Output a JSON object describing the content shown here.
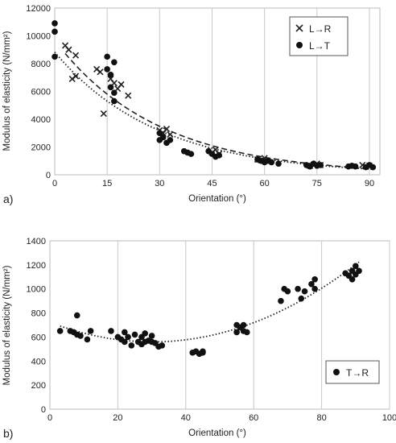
{
  "chart_data": [
    {
      "type": "scatter",
      "panel_label": "a)",
      "xlabel": "Orientation (°)",
      "ylabel": "Modulus of elasticity (N/mm²)",
      "xlim": [
        0,
        93
      ],
      "ylim": [
        0,
        12000
      ],
      "xticks": [
        0,
        15,
        30,
        45,
        60,
        75,
        90
      ],
      "yticks": [
        0,
        2000,
        4000,
        6000,
        8000,
        10000,
        12000
      ],
      "grid": "vertical",
      "legend_position": "top-right",
      "series": [
        {
          "name": "L→R",
          "marker": "x",
          "trendline": "dashed",
          "points": [
            [
              3,
              9300
            ],
            [
              4,
              9000
            ],
            [
              5,
              6900
            ],
            [
              6,
              8600
            ],
            [
              6,
              7100
            ],
            [
              12,
              7600
            ],
            [
              13,
              7400
            ],
            [
              14,
              4400
            ],
            [
              16,
              6900
            ],
            [
              17,
              6600
            ],
            [
              18,
              6200
            ],
            [
              19,
              6500
            ],
            [
              21,
              5700
            ],
            [
              30,
              3200
            ],
            [
              31,
              3000
            ],
            [
              32,
              3300
            ],
            [
              33,
              2900
            ],
            [
              45,
              1600
            ],
            [
              46,
              1800
            ],
            [
              47,
              1500
            ],
            [
              58,
              1100
            ],
            [
              59,
              1050
            ],
            [
              60,
              1200
            ],
            [
              61,
              950
            ],
            [
              73,
              650
            ],
            [
              74,
              700
            ],
            [
              75,
              800
            ],
            [
              76,
              700
            ],
            [
              88,
              700
            ],
            [
              89,
              600
            ],
            [
              90,
              650
            ]
          ]
        },
        {
          "name": "L→T",
          "marker": "circle",
          "trendline": "dotted",
          "points": [
            [
              0,
              8500
            ],
            [
              0,
              10300
            ],
            [
              0,
              10900
            ],
            [
              15,
              8500
            ],
            [
              15,
              7600
            ],
            [
              16,
              7200
            ],
            [
              16,
              6300
            ],
            [
              17,
              8100
            ],
            [
              17,
              5900
            ],
            [
              17,
              5300
            ],
            [
              30,
              3000
            ],
            [
              30,
              2500
            ],
            [
              31,
              2700
            ],
            [
              32,
              2300
            ],
            [
              33,
              2500
            ],
            [
              37,
              1700
            ],
            [
              38,
              1600
            ],
            [
              39,
              1500
            ],
            [
              44,
              1700
            ],
            [
              45,
              1500
            ],
            [
              46,
              1300
            ],
            [
              47,
              1400
            ],
            [
              58,
              1100
            ],
            [
              59,
              1000
            ],
            [
              60,
              900
            ],
            [
              61,
              1000
            ],
            [
              62,
              900
            ],
            [
              64,
              800
            ],
            [
              72,
              700
            ],
            [
              73,
              600
            ],
            [
              74,
              800
            ],
            [
              75,
              650
            ],
            [
              76,
              700
            ],
            [
              84,
              600
            ],
            [
              85,
              650
            ],
            [
              86,
              600
            ],
            [
              89,
              550
            ],
            [
              90,
              700
            ],
            [
              91,
              550
            ]
          ]
        }
      ]
    },
    {
      "type": "scatter",
      "panel_label": "b)",
      "xlabel": "Orientation (°)",
      "ylabel": "Modulus of elasticity (N/mm²)",
      "xlim": [
        0,
        100
      ],
      "ylim": [
        0,
        1400
      ],
      "xticks": [
        0,
        20,
        40,
        60,
        80,
        100
      ],
      "yticks": [
        0,
        200,
        400,
        600,
        800,
        1000,
        1200,
        1400
      ],
      "grid": "vertical",
      "legend_position": "bottom-right",
      "series": [
        {
          "name": "T→R",
          "marker": "circle",
          "trendline": "dotted",
          "points": [
            [
              3,
              650
            ],
            [
              6,
              650
            ],
            [
              7,
              640
            ],
            [
              8,
              780
            ],
            [
              8,
              620
            ],
            [
              9,
              610
            ],
            [
              11,
              580
            ],
            [
              12,
              650
            ],
            [
              18,
              650
            ],
            [
              20,
              600
            ],
            [
              21,
              580
            ],
            [
              22,
              640
            ],
            [
              22,
              560
            ],
            [
              23,
              600
            ],
            [
              24,
              530
            ],
            [
              25,
              620
            ],
            [
              26,
              560
            ],
            [
              27,
              600
            ],
            [
              27,
              540
            ],
            [
              28,
              630
            ],
            [
              28,
              560
            ],
            [
              29,
              570
            ],
            [
              30,
              560
            ],
            [
              30,
              610
            ],
            [
              31,
              550
            ],
            [
              32,
              520
            ],
            [
              33,
              530
            ],
            [
              42,
              470
            ],
            [
              43,
              480
            ],
            [
              44,
              460
            ],
            [
              45,
              470
            ],
            [
              45,
              480
            ],
            [
              55,
              700
            ],
            [
              55,
              640
            ],
            [
              56,
              680
            ],
            [
              57,
              650
            ],
            [
              57,
              700
            ],
            [
              58,
              640
            ],
            [
              68,
              900
            ],
            [
              69,
              1000
            ],
            [
              70,
              980
            ],
            [
              73,
              1000
            ],
            [
              74,
              920
            ],
            [
              75,
              980
            ],
            [
              77,
              1040
            ],
            [
              78,
              1080
            ],
            [
              78,
              1000
            ],
            [
              87,
              1130
            ],
            [
              88,
              1110
            ],
            [
              89,
              1150
            ],
            [
              89,
              1080
            ],
            [
              90,
              1190
            ],
            [
              90,
              1120
            ],
            [
              91,
              1150
            ]
          ]
        }
      ]
    }
  ]
}
